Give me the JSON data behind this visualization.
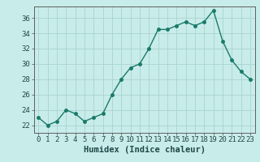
{
  "xlabel": "Humidex (Indice chaleur)",
  "x": [
    0,
    1,
    2,
    3,
    4,
    5,
    6,
    7,
    8,
    9,
    10,
    11,
    12,
    13,
    14,
    15,
    16,
    17,
    18,
    19,
    20,
    21,
    22,
    23
  ],
  "y": [
    23,
    22,
    22.5,
    24,
    23.5,
    22.5,
    23,
    23.5,
    26,
    28,
    29.5,
    30,
    32,
    34.5,
    34.5,
    35,
    35.5,
    35,
    35.5,
    37,
    33,
    30.5,
    29,
    28
  ],
  "line_color": "#1a7a6a",
  "marker": "o",
  "marker_size": 2.5,
  "line_width": 1.0,
  "bg_color": "#c8ecea",
  "grid_color": "#a8d4d0",
  "axis_color": "#606060",
  "tick_label_color": "#204848",
  "ylim": [
    21.0,
    37.5
  ],
  "xlim": [
    -0.5,
    23.5
  ],
  "yticks": [
    22,
    24,
    26,
    28,
    30,
    32,
    34,
    36
  ],
  "xticks": [
    0,
    1,
    2,
    3,
    4,
    5,
    6,
    7,
    8,
    9,
    10,
    11,
    12,
    13,
    14,
    15,
    16,
    17,
    18,
    19,
    20,
    21,
    22,
    23
  ],
  "xlabel_fontsize": 7.5,
  "tick_fontsize": 6.5
}
